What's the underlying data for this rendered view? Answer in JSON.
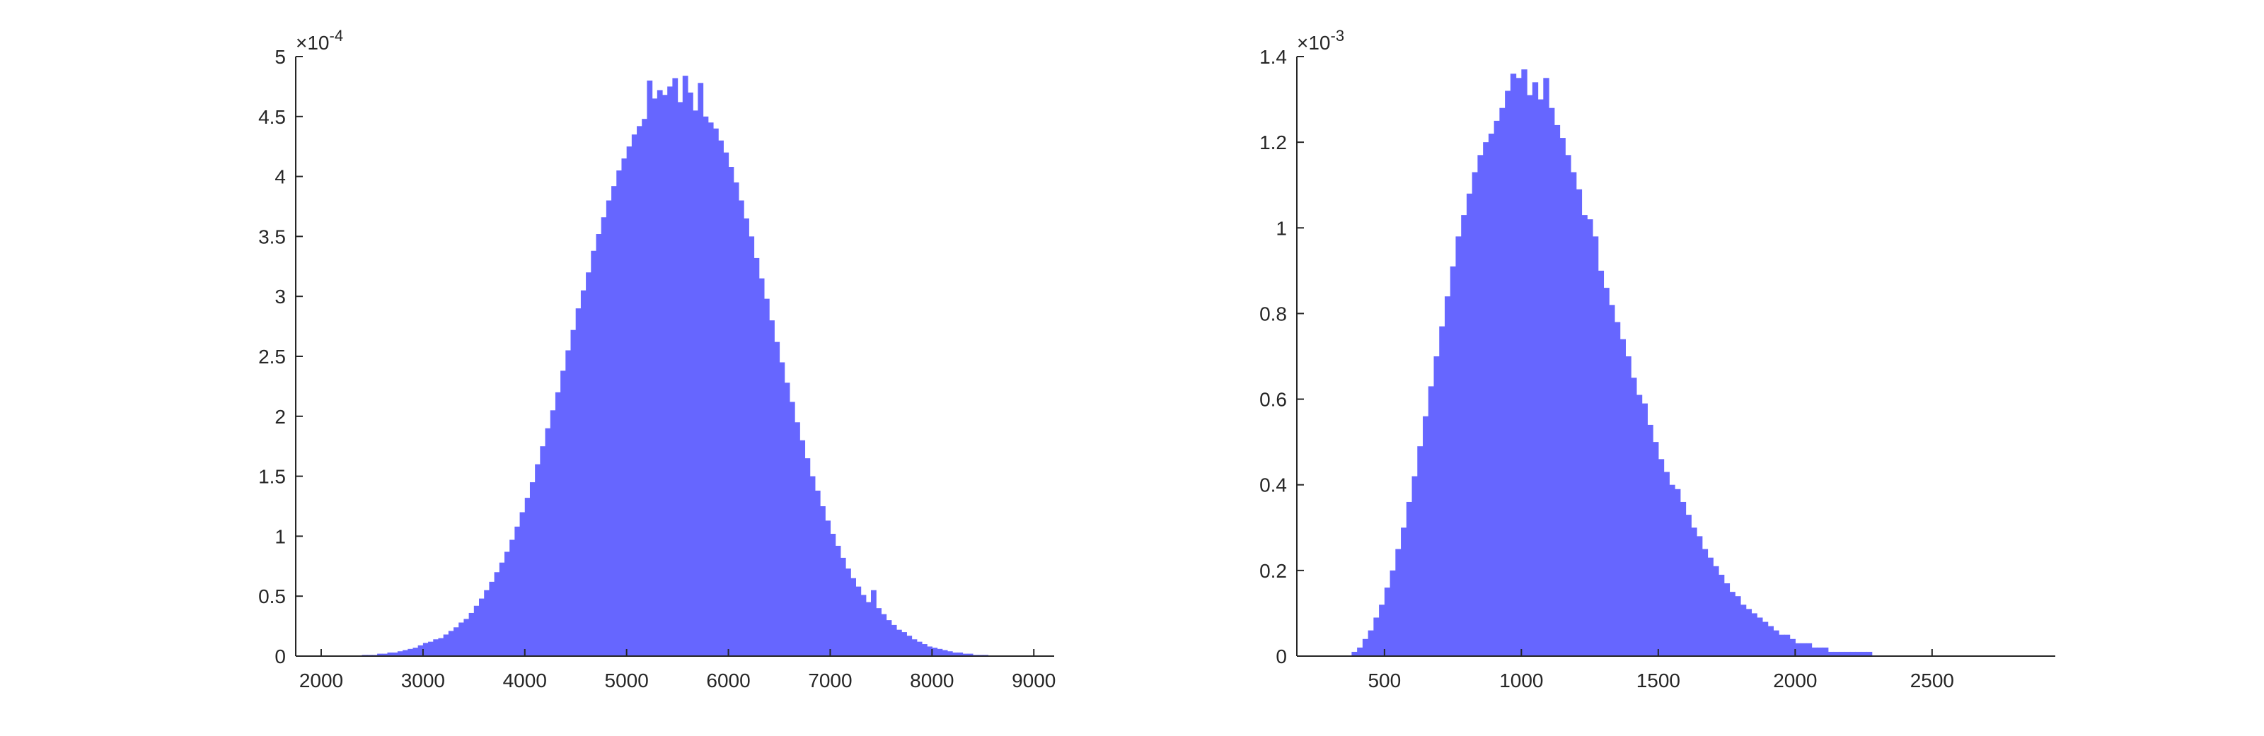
{
  "chart_data": [
    {
      "type": "bar",
      "subtype": "histogram",
      "title": "",
      "xlabel": "",
      "ylabel": "",
      "xlim": [
        1750,
        9200
      ],
      "ylim": [
        0,
        5
      ],
      "y_exponent_label": "×10",
      "y_exponent_power": "-4",
      "xticks": [
        2000,
        3000,
        4000,
        5000,
        6000,
        7000,
        8000,
        9000
      ],
      "yticks": [
        0,
        0.5,
        1,
        1.5,
        2,
        2.5,
        3,
        3.5,
        4,
        4.5,
        5
      ],
      "xtick_labels": [
        "2000",
        "3000",
        "4000",
        "5000",
        "6000",
        "7000",
        "8000",
        "9000"
      ],
      "ytick_labels": [
        "0",
        "0.5",
        "1",
        "1.5",
        "2",
        "2.5",
        "3",
        "3.5",
        "4",
        "4.5",
        "5"
      ],
      "bin_start": 2400,
      "bin_width": 50,
      "bar_color": "#6666ff",
      "values": [
        0.01,
        0.01,
        0.01,
        0.02,
        0.02,
        0.03,
        0.03,
        0.04,
        0.05,
        0.06,
        0.07,
        0.09,
        0.11,
        0.12,
        0.14,
        0.15,
        0.18,
        0.21,
        0.24,
        0.28,
        0.31,
        0.36,
        0.42,
        0.48,
        0.55,
        0.62,
        0.7,
        0.78,
        0.87,
        0.97,
        1.08,
        1.2,
        1.32,
        1.45,
        1.6,
        1.75,
        1.9,
        2.05,
        2.2,
        2.38,
        2.55,
        2.72,
        2.9,
        3.05,
        3.2,
        3.38,
        3.52,
        3.66,
        3.8,
        3.92,
        4.05,
        4.15,
        4.25,
        4.35,
        4.42,
        4.48,
        4.8,
        4.65,
        4.72,
        4.68,
        4.75,
        4.82,
        4.62,
        4.84,
        4.7,
        4.55,
        4.78,
        4.5,
        4.45,
        4.4,
        4.3,
        4.2,
        4.08,
        3.95,
        3.8,
        3.65,
        3.5,
        3.32,
        3.15,
        2.98,
        2.8,
        2.62,
        2.45,
        2.28,
        2.12,
        1.95,
        1.8,
        1.65,
        1.5,
        1.38,
        1.25,
        1.13,
        1.02,
        0.92,
        0.82,
        0.73,
        0.65,
        0.58,
        0.51,
        0.45,
        0.55,
        0.4,
        0.35,
        0.3,
        0.26,
        0.22,
        0.2,
        0.17,
        0.14,
        0.12,
        0.1,
        0.08,
        0.07,
        0.06,
        0.05,
        0.04,
        0.03,
        0.03,
        0.02,
        0.02,
        0.01,
        0.01,
        0.01
      ]
    },
    {
      "type": "bar",
      "subtype": "histogram",
      "title": "",
      "xlabel": "",
      "ylabel": "",
      "xlim": [
        180,
        2950
      ],
      "ylim": [
        0,
        1.4
      ],
      "y_exponent_label": "×10",
      "y_exponent_power": "-3",
      "xticks": [
        500,
        1000,
        1500,
        2000,
        2500
      ],
      "yticks": [
        0,
        0.2,
        0.4,
        0.6,
        0.8,
        1,
        1.2,
        1.4
      ],
      "xtick_labels": [
        "500",
        "1000",
        "1500",
        "2000",
        "2500"
      ],
      "ytick_labels": [
        "0",
        "0.2",
        "0.4",
        "0.6",
        "0.8",
        "1",
        "1.2",
        "1.4"
      ],
      "bin_start": 380,
      "bin_width": 20,
      "bar_color": "#6666ff",
      "values": [
        0.01,
        0.02,
        0.04,
        0.06,
        0.09,
        0.12,
        0.16,
        0.2,
        0.25,
        0.3,
        0.36,
        0.42,
        0.49,
        0.56,
        0.63,
        0.7,
        0.77,
        0.84,
        0.91,
        0.98,
        1.03,
        1.08,
        1.13,
        1.17,
        1.2,
        1.22,
        1.25,
        1.28,
        1.32,
        1.36,
        1.35,
        1.37,
        1.31,
        1.34,
        1.3,
        1.35,
        1.28,
        1.24,
        1.21,
        1.17,
        1.13,
        1.09,
        1.03,
        1.02,
        0.98,
        0.9,
        0.86,
        0.82,
        0.78,
        0.74,
        0.7,
        0.65,
        0.61,
        0.59,
        0.54,
        0.5,
        0.46,
        0.43,
        0.4,
        0.39,
        0.36,
        0.33,
        0.3,
        0.28,
        0.25,
        0.23,
        0.21,
        0.19,
        0.17,
        0.15,
        0.14,
        0.12,
        0.11,
        0.1,
        0.09,
        0.08,
        0.07,
        0.06,
        0.05,
        0.05,
        0.04,
        0.03,
        0.03,
        0.03,
        0.02,
        0.02,
        0.02,
        0.01,
        0.01,
        0.01,
        0.01,
        0.01,
        0.01,
        0.01,
        0.01
      ]
    }
  ]
}
